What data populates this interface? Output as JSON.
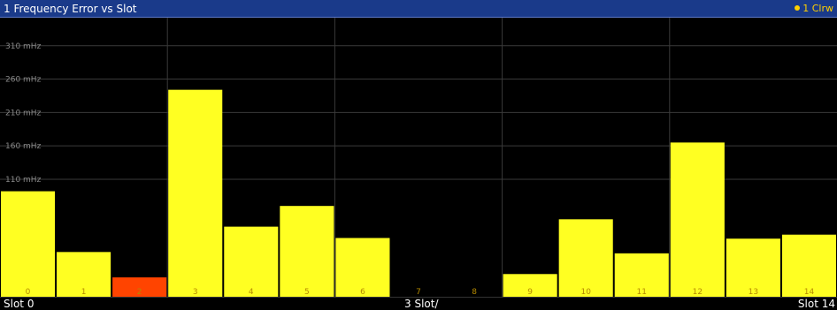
{
  "window": {
    "title": "1 Frequency Error vs Slot",
    "trace_label": "1 Clrw",
    "trace_color": "#ffd000"
  },
  "footer": {
    "x_start": "Slot 0",
    "x_center": "3 Slot/",
    "x_end": "Slot 14"
  },
  "colors": {
    "bar": "#ffff22",
    "highlight_bar": "#ff4400",
    "grid": "#3a3a3a",
    "background": "#000000"
  },
  "chart_data": {
    "type": "bar",
    "title": "1 Frequency Error vs Slot",
    "ylabel": "",
    "xlabel": "Slot",
    "y_unit": "mHz",
    "yticks": [
      110,
      160,
      210,
      260,
      310
    ],
    "ytick_labels": [
      "110 mHz",
      "160 mHz",
      "210 mHz",
      "260 mHz",
      "310 mHz"
    ],
    "ylim": [
      -66,
      352
    ],
    "categories": [
      "0",
      "1",
      "2",
      "3",
      "4",
      "5",
      "6",
      "7",
      "8",
      "9",
      "10",
      "11",
      "12",
      "13",
      "14"
    ],
    "values": [
      92,
      1,
      -37,
      244,
      39,
      70,
      22,
      -67,
      -90,
      -32,
      50,
      -1,
      165,
      21,
      27
    ],
    "highlight_index": 2,
    "grid": true,
    "legend": "top-right"
  }
}
